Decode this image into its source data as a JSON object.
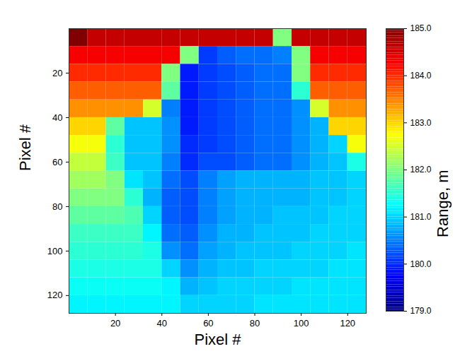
{
  "chart_data": {
    "type": "heatmap",
    "xlabel": "Pixel #",
    "ylabel": "Pixel #",
    "x": [
      4,
      12,
      20,
      28,
      36,
      44,
      52,
      60,
      68,
      76,
      84,
      92,
      100,
      108,
      116,
      124
    ],
    "y": [
      4,
      12,
      20,
      28,
      36,
      44,
      52,
      60,
      68,
      76,
      84,
      92,
      100,
      108,
      116,
      124
    ],
    "xlim": [
      0,
      128
    ],
    "ylim": [
      0,
      128
    ],
    "xticks": [
      20,
      40,
      60,
      80,
      100,
      120
    ],
    "yticks": [
      20,
      40,
      60,
      80,
      100,
      120
    ],
    "grid": false,
    "values": [
      [
        185,
        184.6,
        184.6,
        184.6,
        184.6,
        184.6,
        184.6,
        184.6,
        184.6,
        184.6,
        184.6,
        182.0,
        184.6,
        184.6,
        184.6,
        184.6
      ],
      [
        184.3,
        184.3,
        184.3,
        184.3,
        184.3,
        184.3,
        182.0,
        180.1,
        180.3,
        180.4,
        180.4,
        180.5,
        182.0,
        184.3,
        184.3,
        184.3
      ],
      [
        184.0,
        184.0,
        184.0,
        184.0,
        184.0,
        182.0,
        179.9,
        180.1,
        180.2,
        180.3,
        180.4,
        180.4,
        182.0,
        184.0,
        184.0,
        184.0
      ],
      [
        183.7,
        183.7,
        183.7,
        183.7,
        183.7,
        181.8,
        179.9,
        180.1,
        180.2,
        180.3,
        180.4,
        180.4,
        181.5,
        183.7,
        183.7,
        183.7
      ],
      [
        183.4,
        183.4,
        183.4,
        183.4,
        182.5,
        180.5,
        179.9,
        180.1,
        180.2,
        180.3,
        180.4,
        180.4,
        180.6,
        182.5,
        183.4,
        183.4
      ],
      [
        183.0,
        183.0,
        181.8,
        180.9,
        180.9,
        180.6,
        179.9,
        180.1,
        180.2,
        180.3,
        180.4,
        180.4,
        180.6,
        180.8,
        183.0,
        183.0
      ],
      [
        182.7,
        182.7,
        181.5,
        180.9,
        180.9,
        180.6,
        180.0,
        180.1,
        180.2,
        180.3,
        180.4,
        180.4,
        180.6,
        180.8,
        181.0,
        182.7
      ],
      [
        182.4,
        182.4,
        181.6,
        180.9,
        180.9,
        180.5,
        180.0,
        180.2,
        180.2,
        180.3,
        180.4,
        180.4,
        180.6,
        180.8,
        180.9,
        181.4
      ],
      [
        182.2,
        182.2,
        182.0,
        181.1,
        180.9,
        180.4,
        180.2,
        180.5,
        180.7,
        180.8,
        180.8,
        180.8,
        180.8,
        180.9,
        180.9,
        181.0
      ],
      [
        182.0,
        182.0,
        182.0,
        181.5,
        180.8,
        180.3,
        180.2,
        180.5,
        180.7,
        180.8,
        180.8,
        180.8,
        180.8,
        180.9,
        180.9,
        181.0
      ],
      [
        181.8,
        181.8,
        181.8,
        181.7,
        181.0,
        180.3,
        180.2,
        180.5,
        180.7,
        180.8,
        180.8,
        180.9,
        180.9,
        180.9,
        181.0,
        181.0
      ],
      [
        181.6,
        181.6,
        181.6,
        181.6,
        181.2,
        180.4,
        180.3,
        180.6,
        180.8,
        180.8,
        180.9,
        180.9,
        180.9,
        181.0,
        181.0,
        181.0
      ],
      [
        181.5,
        181.5,
        181.5,
        181.5,
        181.4,
        180.6,
        180.4,
        180.7,
        180.8,
        180.9,
        180.9,
        180.9,
        181.0,
        181.0,
        181.0,
        181.1
      ],
      [
        181.4,
        181.4,
        181.4,
        181.4,
        181.4,
        181.0,
        180.6,
        180.8,
        180.9,
        180.9,
        181.0,
        181.0,
        181.0,
        181.0,
        181.1,
        181.1
      ],
      [
        181.3,
        181.3,
        181.3,
        181.3,
        181.3,
        181.2,
        180.8,
        180.9,
        181.0,
        181.0,
        181.0,
        181.0,
        181.1,
        181.1,
        181.1,
        181.1
      ],
      [
        181.2,
        181.2,
        181.2,
        181.2,
        181.2,
        181.2,
        181.0,
        181.0,
        181.0,
        181.0,
        181.1,
        181.1,
        181.1,
        181.1,
        181.1,
        181.1
      ]
    ],
    "colorbar": {
      "label": "Range, m",
      "lim": [
        179,
        185
      ],
      "ticks": [
        179,
        180,
        181,
        182,
        183,
        184,
        185
      ]
    }
  }
}
